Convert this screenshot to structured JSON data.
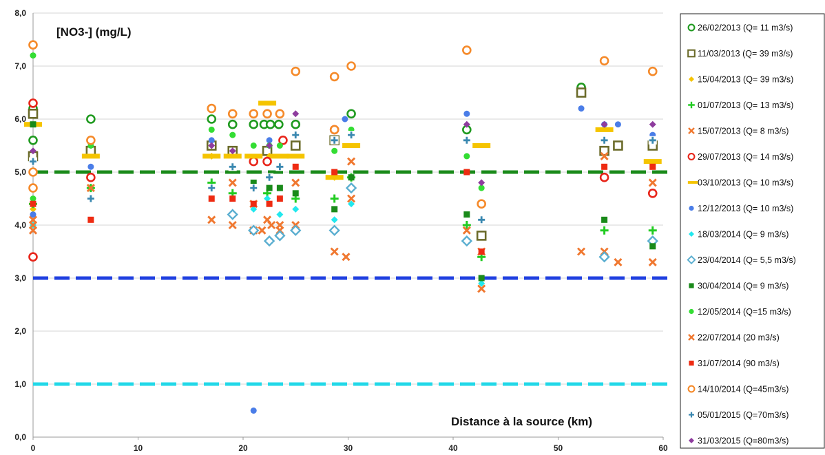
{
  "chart_data": {
    "type": "scatter",
    "title": "[NO3-] (mg/L)",
    "xlabel": "Distance à la source (km)",
    "ylabel": "",
    "xlim": [
      0,
      60
    ],
    "ylim": [
      0,
      8
    ],
    "x_ticks": [
      "0",
      "10",
      "20",
      "30",
      "40",
      "50",
      "60"
    ],
    "y_ticks": [
      "0,0",
      "1,0",
      "2,0",
      "3,0",
      "4,0",
      "5,0",
      "6,0",
      "7,0",
      "8,0"
    ],
    "grid": "horizontal",
    "legend_position": "right",
    "reference_lines": [
      {
        "y": 5.0,
        "color": "#1a8a1a"
      },
      {
        "y": 3.0,
        "color": "#1f3fe0"
      },
      {
        "y": 1.0,
        "color": "#22d8e8"
      }
    ],
    "series": [
      {
        "name": "26/02/2013 (Q= 11 m3/s)",
        "marker": "ring",
        "color": "#1f9a1f",
        "points": [
          [
            0,
            5.6
          ],
          [
            0,
            6.2
          ],
          [
            5.5,
            6.0
          ],
          [
            17,
            6.0
          ],
          [
            19,
            5.9
          ],
          [
            21,
            5.9
          ],
          [
            22,
            5.9
          ],
          [
            22.6,
            5.9
          ],
          [
            23.4,
            5.9
          ],
          [
            25,
            5.9
          ],
          [
            30.3,
            6.1
          ],
          [
            41.3,
            5.8
          ],
          [
            52.2,
            6.6
          ]
        ]
      },
      {
        "name": "11/03/2013 (Q= 39 m3/s)",
        "marker": "square-open",
        "color": "#6b6b2a",
        "points": [
          [
            0,
            6.1
          ],
          [
            0,
            5.3
          ],
          [
            5.5,
            5.4
          ],
          [
            17,
            5.5
          ],
          [
            19,
            5.4
          ],
          [
            22.3,
            5.4
          ],
          [
            25,
            5.5
          ],
          [
            28.7,
            5.6
          ],
          [
            42.7,
            3.8
          ],
          [
            52.2,
            6.5
          ],
          [
            54.4,
            5.4
          ],
          [
            55.7,
            5.5
          ],
          [
            59,
            5.5
          ]
        ]
      },
      {
        "name": "15/04/2013 (Q= 39 m3/s)",
        "marker": "diamond",
        "color": "#f5c400",
        "points": [
          [
            0,
            4.3
          ],
          [
            17,
            5.3
          ],
          [
            22.5,
            5.3
          ],
          [
            28.7,
            4.9
          ]
        ]
      },
      {
        "name": "01/07/2013 (Q= 13 m3/s)",
        "marker": "plus",
        "color": "#22cc22",
        "points": [
          [
            0,
            4.4
          ],
          [
            5.5,
            4.7
          ],
          [
            17,
            4.8
          ],
          [
            19,
            4.6
          ],
          [
            22.3,
            4.6
          ],
          [
            25,
            4.5
          ],
          [
            28.7,
            4.5
          ],
          [
            30.3,
            4.9
          ],
          [
            41.3,
            4.0
          ],
          [
            42.7,
            3.4
          ],
          [
            54.4,
            3.9
          ],
          [
            59,
            3.9
          ]
        ]
      },
      {
        "name": "15/07/2013 (Q= 8 m3/s)",
        "marker": "x",
        "color": "#f07830",
        "points": [
          [
            0,
            3.9
          ],
          [
            0,
            4.1
          ],
          [
            5.5,
            4.7
          ],
          [
            17,
            4.1
          ],
          [
            19,
            4.0
          ],
          [
            21,
            3.9
          ],
          [
            21.8,
            3.9
          ],
          [
            22.7,
            4.0
          ],
          [
            23.5,
            3.9
          ],
          [
            25,
            4.8
          ],
          [
            25,
            4.0
          ],
          [
            28.7,
            3.5
          ],
          [
            29.8,
            3.4
          ],
          [
            30.3,
            5.2
          ],
          [
            30.3,
            4.5
          ],
          [
            41.3,
            3.9
          ],
          [
            42.7,
            2.8
          ],
          [
            52.2,
            3.5
          ],
          [
            54.4,
            3.5
          ],
          [
            54.4,
            5.3
          ],
          [
            55.7,
            3.3
          ],
          [
            59,
            4.8
          ],
          [
            59,
            3.3
          ]
        ]
      },
      {
        "name": "29/07/2013 (Q= 14 m3/s)",
        "marker": "ring",
        "color": "#e8251a",
        "points": [
          [
            0,
            6.3
          ],
          [
            0,
            3.4
          ],
          [
            5.5,
            4.9
          ],
          [
            21,
            5.2
          ],
          [
            22.3,
            5.2
          ],
          [
            23.8,
            5.6
          ],
          [
            28.7,
            5.8
          ],
          [
            54.4,
            4.9
          ],
          [
            59,
            4.6
          ]
        ]
      },
      {
        "name": "03/10/2013 (Q= 10 m3/s)",
        "marker": "dash",
        "color": "#f5c400",
        "points": [
          [
            0,
            5.9
          ],
          [
            5.5,
            5.3
          ],
          [
            17,
            5.3
          ],
          [
            19,
            5.3
          ],
          [
            21,
            5.3
          ],
          [
            22.3,
            6.3
          ],
          [
            23.5,
            5.3
          ],
          [
            25,
            5.3
          ],
          [
            28.7,
            4.9
          ],
          [
            30.3,
            5.5
          ],
          [
            42.7,
            5.5
          ],
          [
            54.4,
            5.8
          ],
          [
            59,
            5.2
          ]
        ]
      },
      {
        "name": "12/12/2013 (Q= 10 m3/s)",
        "marker": "dot",
        "color": "#4a7de8",
        "points": [
          [
            0,
            4.2
          ],
          [
            5.5,
            5.1
          ],
          [
            17,
            5.6
          ],
          [
            21,
            0.5
          ],
          [
            22.5,
            5.6
          ],
          [
            29.7,
            6.0
          ],
          [
            41.3,
            6.1
          ],
          [
            52.2,
            6.2
          ],
          [
            54.4,
            5.9
          ],
          [
            55.7,
            5.9
          ],
          [
            59,
            5.7
          ]
        ]
      },
      {
        "name": "18/03/2014 (Q= 9 m3/s)",
        "marker": "diamond",
        "color": "#22e8ee",
        "points": [
          [
            0,
            4.0
          ],
          [
            21,
            4.3
          ],
          [
            22.3,
            4.5
          ],
          [
            23.5,
            4.2
          ],
          [
            25,
            4.3
          ],
          [
            28.7,
            4.1
          ],
          [
            30.3,
            4.4
          ],
          [
            42.7,
            2.9
          ]
        ]
      },
      {
        "name": "23/04/2014 (Q= 5,5  m3/s)",
        "marker": "diamond-open",
        "color": "#5aaed0",
        "points": [
          [
            19,
            4.2
          ],
          [
            21,
            3.9
          ],
          [
            22.5,
            3.7
          ],
          [
            23.5,
            3.8
          ],
          [
            25,
            3.9
          ],
          [
            28.7,
            3.9
          ],
          [
            30.3,
            4.7
          ],
          [
            41.3,
            3.7
          ],
          [
            54.4,
            3.4
          ],
          [
            59,
            3.7
          ]
        ]
      },
      {
        "name": "30/04/2014 (Q= 9 m3/s)",
        "marker": "square",
        "color": "#1a8a1a",
        "points": [
          [
            0,
            5.9
          ],
          [
            21,
            4.8
          ],
          [
            22.5,
            4.7
          ],
          [
            23.5,
            4.7
          ],
          [
            25,
            4.6
          ],
          [
            28.7,
            4.3
          ],
          [
            30.3,
            4.9
          ],
          [
            41.3,
            4.2
          ],
          [
            42.7,
            3.0
          ],
          [
            54.4,
            4.1
          ],
          [
            59,
            3.6
          ]
        ]
      },
      {
        "name": "12/05/2014 (Q=15 m3/s)",
        "marker": "dot",
        "color": "#33dd33",
        "points": [
          [
            0,
            7.2
          ],
          [
            0,
            4.5
          ],
          [
            5.5,
            5.5
          ],
          [
            17,
            5.8
          ],
          [
            19,
            5.7
          ],
          [
            21,
            5.5
          ],
          [
            22.5,
            5.5
          ],
          [
            23.5,
            5.5
          ],
          [
            28.7,
            5.4
          ],
          [
            30.3,
            5.8
          ],
          [
            41.3,
            5.3
          ],
          [
            42.7,
            4.7
          ]
        ]
      },
      {
        "name": "22/07/2014 (20 m3/s)",
        "marker": "x",
        "color": "#f07830",
        "points": [
          [
            0,
            4.0
          ],
          [
            19,
            4.8
          ],
          [
            21,
            4.4
          ],
          [
            22.3,
            4.1
          ],
          [
            23.5,
            4.0
          ],
          [
            42.7,
            3.5
          ]
        ]
      },
      {
        "name": "31/07/2014 (90 m3/s)",
        "marker": "square",
        "color": "#ee2b12",
        "points": [
          [
            0,
            4.4
          ],
          [
            5.5,
            4.1
          ],
          [
            17,
            4.5
          ],
          [
            19,
            4.5
          ],
          [
            21,
            4.4
          ],
          [
            22.5,
            4.4
          ],
          [
            23.5,
            4.5
          ],
          [
            25,
            5.1
          ],
          [
            28.7,
            5.0
          ],
          [
            30.3,
            5.7
          ],
          [
            41.3,
            5.0
          ],
          [
            42.7,
            3.5
          ],
          [
            54.4,
            5.1
          ],
          [
            59,
            5.1
          ]
        ]
      },
      {
        "name": "14/10/2014 (Q=45m3/s)",
        "marker": "ring",
        "color": "#f58a2a",
        "points": [
          [
            0,
            7.4
          ],
          [
            0,
            4.7
          ],
          [
            0,
            5.0
          ],
          [
            5.5,
            5.6
          ],
          [
            17,
            6.2
          ],
          [
            19,
            6.1
          ],
          [
            21,
            6.1
          ],
          [
            22.3,
            6.1
          ],
          [
            23.5,
            6.1
          ],
          [
            25,
            6.9
          ],
          [
            28.7,
            6.8
          ],
          [
            30.3,
            7.0
          ],
          [
            28.7,
            5.8
          ],
          [
            41.3,
            7.3
          ],
          [
            42.7,
            4.4
          ],
          [
            54.4,
            7.1
          ],
          [
            59,
            6.9
          ]
        ]
      },
      {
        "name": "05/01/2015 (Q=70m3/s)",
        "marker": "cross",
        "color": "#3a88b0",
        "points": [
          [
            0,
            5.2
          ],
          [
            5.5,
            4.5
          ],
          [
            17,
            4.7
          ],
          [
            19,
            5.1
          ],
          [
            21,
            4.7
          ],
          [
            22.5,
            4.9
          ],
          [
            23.5,
            5.1
          ],
          [
            25,
            5.7
          ],
          [
            28.7,
            5.6
          ],
          [
            30.3,
            5.7
          ],
          [
            41.3,
            5.6
          ],
          [
            42.7,
            4.1
          ],
          [
            54.4,
            5.6
          ],
          [
            59,
            5.6
          ]
        ]
      },
      {
        "name": "31/03/2015  (Q=80m3/s)",
        "marker": "diamond",
        "color": "#8e3c9e",
        "points": [
          [
            0,
            5.4
          ],
          [
            17,
            5.5
          ],
          [
            19,
            5.4
          ],
          [
            22.5,
            5.5
          ],
          [
            25,
            6.1
          ],
          [
            41.3,
            5.9
          ],
          [
            42.7,
            4.8
          ],
          [
            54.4,
            5.9
          ],
          [
            59,
            5.9
          ]
        ]
      }
    ]
  }
}
